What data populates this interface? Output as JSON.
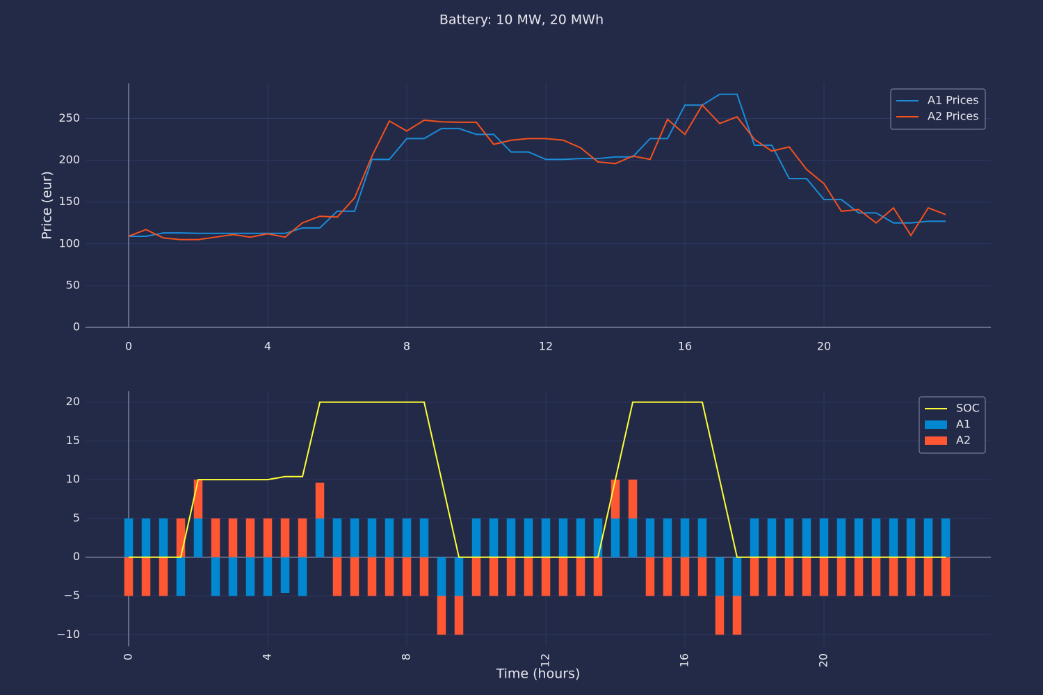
{
  "title": "Battery: 10 MW, 20 MWh",
  "chart_data": [
    {
      "type": "line",
      "ylabel": "Price (eur)",
      "x": [
        0,
        0.5,
        1,
        1.5,
        2,
        2.5,
        3,
        3.5,
        4,
        4.5,
        5,
        5.5,
        6,
        6.5,
        7,
        7.5,
        8,
        8.5,
        9,
        9.5,
        10,
        10.5,
        11,
        11.5,
        12,
        12.5,
        13,
        13.5,
        14,
        14.5,
        15,
        15.5,
        16,
        16.5,
        17,
        17.5,
        18,
        18.5,
        19,
        19.5,
        20,
        20.5,
        21,
        21.5,
        22,
        22.5,
        23,
        23.5
      ],
      "series": [
        {
          "name": "A1 Prices",
          "color": "#1a8cd8",
          "values": [
            109,
            109,
            113,
            113,
            112.5,
            112.5,
            112.5,
            112.5,
            112.5,
            112.5,
            119,
            119,
            139,
            139,
            201,
            201,
            226,
            226,
            238,
            238,
            231,
            231,
            210,
            210,
            201,
            201,
            202,
            202,
            204,
            204,
            226,
            226,
            266,
            266,
            279,
            279,
            218,
            218,
            178,
            178,
            153,
            153,
            137,
            137,
            125,
            125,
            127,
            127
          ]
        },
        {
          "name": "A2 Prices",
          "color": "#f4511e",
          "values": [
            109,
            117,
            107,
            105,
            105,
            108,
            111,
            108,
            112,
            108,
            125,
            133,
            132,
            155,
            205,
            247,
            235,
            248,
            246,
            245.5,
            245.5,
            219,
            224,
            226,
            226,
            224,
            215,
            198,
            196,
            205,
            201,
            249,
            231,
            266,
            244,
            252,
            225,
            211,
            216,
            189,
            172,
            139,
            141,
            125,
            143,
            110,
            143,
            135
          ]
        }
      ],
      "xlim": [
        -1.24,
        24.8
      ],
      "ylim": [
        0,
        292
      ],
      "xticks": [
        0,
        4,
        8,
        12,
        16,
        20
      ],
      "yticks": [
        0,
        50,
        100,
        150,
        200,
        250
      ],
      "grid": true,
      "legend": "upper right"
    },
    {
      "type": "combo",
      "xlabel": "Time (hours)",
      "x": [
        0,
        0.5,
        1,
        1.5,
        2,
        2.5,
        3,
        3.5,
        4,
        4.5,
        5,
        5.5,
        6,
        6.5,
        7,
        7.5,
        8,
        8.5,
        9,
        9.5,
        10,
        10.5,
        11,
        11.5,
        12,
        12.5,
        13,
        13.5,
        14,
        14.5,
        15,
        15.5,
        16,
        16.5,
        17,
        17.5,
        18,
        18.5,
        19,
        19.5,
        20,
        20.5,
        21,
        21.5,
        22,
        22.5,
        23,
        23.5
      ],
      "series": [
        {
          "name": "SOC",
          "type": "line",
          "color": "#ffff33",
          "values": [
            0,
            0,
            0,
            0,
            10,
            10,
            10,
            10,
            10,
            10.4,
            10.4,
            20,
            20,
            20,
            20,
            20,
            20,
            20,
            10,
            0,
            0,
            0,
            0,
            0,
            0,
            0,
            0,
            0,
            10,
            20,
            20,
            20,
            20,
            20,
            10,
            0,
            0,
            0,
            0,
            0,
            0,
            0,
            0,
            0,
            0,
            0,
            0,
            0
          ]
        },
        {
          "name": "A1",
          "type": "bar",
          "color": "#0288d1",
          "values": [
            5,
            5,
            5,
            -5,
            5,
            -5,
            -5,
            -5,
            -5,
            -4.6,
            -5,
            5,
            5,
            5,
            5,
            5,
            5,
            5,
            -5,
            -5,
            5,
            5,
            5,
            5,
            5,
            5,
            5,
            5,
            5,
            5,
            5,
            5,
            5,
            5,
            -5,
            -5,
            5,
            5,
            5,
            5,
            5,
            5,
            5,
            5,
            5,
            5,
            5,
            5
          ]
        },
        {
          "name": "A2",
          "type": "bar",
          "color": "#ff5733",
          "values": [
            -5,
            -5,
            -5,
            5,
            5,
            5,
            5,
            5,
            5,
            5,
            5,
            4.6,
            -5,
            -5,
            -5,
            -5,
            -5,
            -5,
            -5,
            -5,
            -5,
            -5,
            -5,
            -5,
            -5,
            -5,
            -5,
            -5,
            5,
            5,
            -5,
            -5,
            -5,
            -5,
            -5,
            -5,
            -5,
            -5,
            -5,
            -5,
            -5,
            -5,
            -5,
            -5,
            -5,
            -5,
            -5,
            -5
          ]
        }
      ],
      "stacked": true,
      "bar_width": 0.25,
      "xlim": [
        -1.24,
        24.8
      ],
      "ylim": [
        -11.5,
        21.4
      ],
      "xticks": [
        0,
        4,
        8,
        12,
        16,
        20
      ],
      "yticks": [
        {
          "value": -10,
          "label": "−10"
        },
        {
          "value": -5,
          "label": "−5"
        },
        0,
        5,
        10,
        15,
        20
      ],
      "grid": true,
      "legend": "upper right"
    }
  ]
}
